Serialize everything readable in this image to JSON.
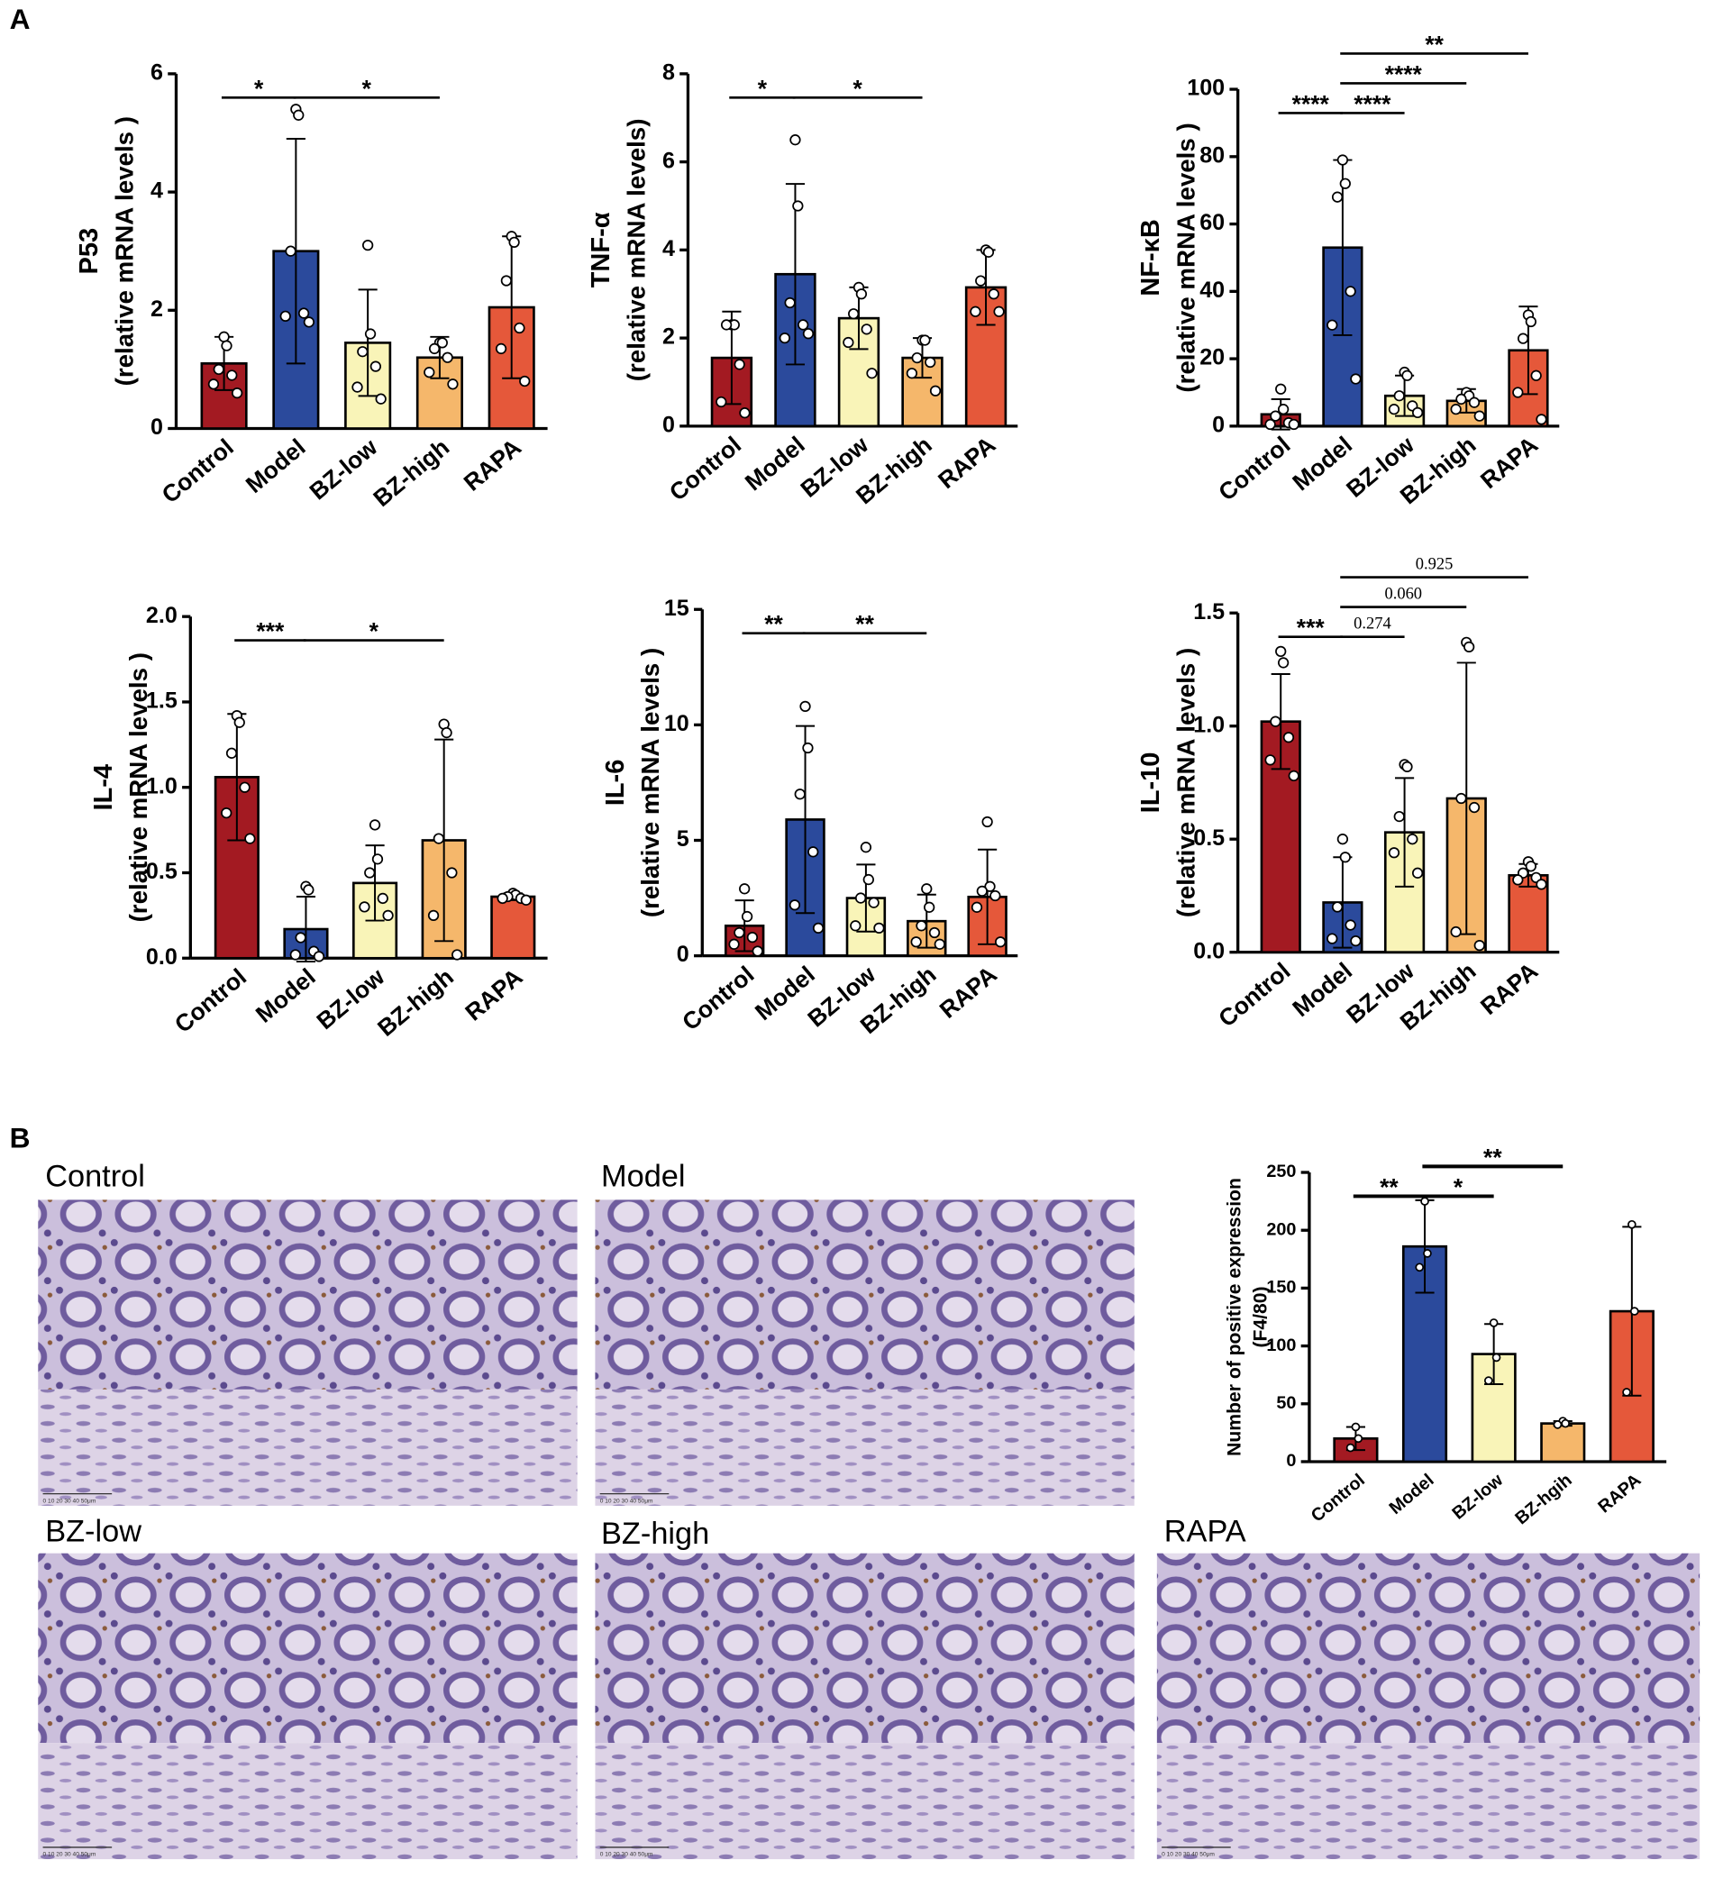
{
  "panel_a_label": "A",
  "panel_b_label": "B",
  "chart_data": [
    {
      "type": "bar",
      "ylabel": [
        "P53",
        "(relative mRNA levels )"
      ],
      "categories": [
        "Control",
        "Model",
        "BZ-low",
        "BZ-high",
        "RAPA"
      ],
      "colors": [
        "#a31a22",
        "#2b4a9c",
        "#f9f4b8",
        "#f5b76b",
        "#e5583a"
      ],
      "values": [
        1.1,
        3.0,
        1.45,
        1.2,
        2.05
      ],
      "errors": [
        0.45,
        1.9,
        0.9,
        0.35,
        1.2
      ],
      "points": [
        [
          1.55,
          1.4,
          1.0,
          0.9,
          0.75,
          0.6
        ],
        [
          5.4,
          5.3,
          3.0,
          1.95,
          1.9,
          1.8
        ],
        [
          3.1,
          1.6,
          1.3,
          1.05,
          0.7,
          0.5
        ],
        [
          1.45,
          1.45,
          1.35,
          1.2,
          0.95,
          0.75
        ],
        [
          3.25,
          3.15,
          2.5,
          1.7,
          1.35,
          0.8
        ]
      ],
      "ylim": [
        0,
        6
      ],
      "yticks": [
        0,
        2,
        4,
        6
      ],
      "brackets": [
        {
          "from": "Control",
          "to": "Model",
          "label": "*"
        },
        {
          "from": "Model",
          "to": "BZ-high",
          "label": "*"
        }
      ]
    },
    {
      "type": "bar",
      "ylabel": [
        "TNF-α",
        "(relative mRNA levels)"
      ],
      "categories": [
        "Control",
        "Model",
        "BZ-low",
        "BZ-high",
        "RAPA"
      ],
      "colors": [
        "#a31a22",
        "#2b4a9c",
        "#f9f4b8",
        "#f5b76b",
        "#e5583a"
      ],
      "values": [
        1.55,
        3.45,
        2.45,
        1.55,
        3.15
      ],
      "errors": [
        1.05,
        2.05,
        0.7,
        0.45,
        0.85
      ],
      "points": [
        [
          2.3,
          2.3,
          2.3,
          1.4,
          0.55,
          0.3
        ],
        [
          6.5,
          5.0,
          2.8,
          2.3,
          2.0,
          2.1
        ],
        [
          3.15,
          3.0,
          2.55,
          2.2,
          1.9,
          1.2
        ],
        [
          1.95,
          1.95,
          1.55,
          1.45,
          1.2,
          0.8
        ],
        [
          4.0,
          3.95,
          3.3,
          3.0,
          2.6,
          2.6
        ]
      ],
      "ylim": [
        0,
        8
      ],
      "yticks": [
        0,
        2,
        4,
        6,
        8
      ],
      "brackets": [
        {
          "from": "Control",
          "to": "Model",
          "label": "*"
        },
        {
          "from": "Model",
          "to": "BZ-high",
          "label": "*"
        }
      ]
    },
    {
      "type": "bar",
      "ylabel": [
        "NF-κB",
        "(relative mRNA levels )"
      ],
      "categories": [
        "Control",
        "Model",
        "BZ-low",
        "BZ-high",
        "RAPA"
      ],
      "colors": [
        "#a31a22",
        "#2b4a9c",
        "#f9f4b8",
        "#f5b76b",
        "#e5583a"
      ],
      "values": [
        3.5,
        53,
        9,
        7.5,
        22.5
      ],
      "errors": [
        4.5,
        26,
        6,
        3.5,
        13
      ],
      "points": [
        [
          11,
          5,
          3,
          1,
          0.5,
          0.5
        ],
        [
          79,
          72,
          68,
          40,
          30,
          14
        ],
        [
          16,
          15,
          9,
          6,
          5,
          4
        ],
        [
          10,
          9,
          8,
          7,
          5,
          3
        ],
        [
          33,
          31,
          26,
          15,
          10,
          2
        ]
      ],
      "ylim": [
        0,
        100
      ],
      "yticks": [
        0,
        20,
        40,
        60,
        80,
        100
      ],
      "brackets": [
        {
          "from": "Control",
          "to": "Model",
          "label": "****"
        },
        {
          "from": "Model",
          "to": "BZ-low",
          "label": "****"
        },
        {
          "from": "Model",
          "to": "BZ-high",
          "label": "****"
        },
        {
          "from": "Model",
          "to": "RAPA",
          "label": "**"
        }
      ]
    },
    {
      "type": "bar",
      "ylabel": [
        "IL-4",
        "(relative mRNA levels )"
      ],
      "categories": [
        "Control",
        "Model",
        "BZ-low",
        "BZ-high",
        "RAPA"
      ],
      "colors": [
        "#a31a22",
        "#2b4a9c",
        "#f9f4b8",
        "#f5b76b",
        "#e5583a"
      ],
      "values": [
        1.06,
        0.17,
        0.44,
        0.69,
        0.36
      ],
      "errors": [
        0.37,
        0.19,
        0.22,
        0.59,
        0.02
      ],
      "points": [
        [
          1.42,
          1.38,
          1.2,
          1.0,
          0.85,
          0.7
        ],
        [
          0.42,
          0.4,
          0.12,
          0.04,
          0.02,
          0.01
        ],
        [
          0.78,
          0.58,
          0.5,
          0.35,
          0.3,
          0.25
        ],
        [
          1.37,
          1.32,
          0.7,
          0.5,
          0.25,
          0.02
        ],
        [
          0.38,
          0.37,
          0.36,
          0.35,
          0.35,
          0.34
        ]
      ],
      "ylim": [
        0,
        2
      ],
      "yticks": [
        {
          "value": 0,
          "label": "0.0"
        },
        0.5,
        {
          "value": 1,
          "label": "1.0"
        },
        1.5,
        {
          "value": 2,
          "label": "2.0"
        }
      ],
      "brackets": [
        {
          "from": "Control",
          "to": "Model",
          "label": "***"
        },
        {
          "from": "Model",
          "to": "BZ-high",
          "label": "*"
        }
      ]
    },
    {
      "type": "bar",
      "ylabel": [
        "IL-6",
        "(relative mRNA levels )"
      ],
      "categories": [
        "Control",
        "Model",
        "BZ-low",
        "BZ-high",
        "RAPA"
      ],
      "colors": [
        "#a31a22",
        "#2b4a9c",
        "#f9f4b8",
        "#f5b76b",
        "#e5583a"
      ],
      "values": [
        1.3,
        5.9,
        2.5,
        1.5,
        2.55
      ],
      "errors": [
        1.1,
        4.05,
        1.45,
        1.15,
        2.05
      ],
      "points": [
        [
          2.9,
          1.7,
          1.0,
          0.8,
          0.5,
          0.2
        ],
        [
          10.8,
          9.0,
          7.0,
          4.5,
          2.2,
          1.2
        ],
        [
          4.7,
          3.3,
          2.5,
          2.3,
          1.3,
          1.2
        ],
        [
          2.9,
          2.1,
          1.3,
          1.0,
          0.6,
          0.5
        ],
        [
          5.8,
          3.0,
          2.8,
          2.6,
          2.1,
          0.6
        ]
      ],
      "ylim": [
        0,
        15
      ],
      "yticks": [
        0,
        5,
        10,
        15
      ],
      "brackets": [
        {
          "from": "Control",
          "to": "Model",
          "label": "**"
        },
        {
          "from": "Model",
          "to": "BZ-high",
          "label": "**"
        }
      ]
    },
    {
      "type": "bar",
      "ylabel": [
        "IL-10",
        "(relative mRNA levels )"
      ],
      "categories": [
        "Control",
        "Model",
        "BZ-low",
        "BZ-high",
        "RAPA"
      ],
      "colors": [
        "#a31a22",
        "#2b4a9c",
        "#f9f4b8",
        "#f5b76b",
        "#e5583a"
      ],
      "values": [
        1.02,
        0.22,
        0.53,
        0.68,
        0.34
      ],
      "errors": [
        0.21,
        0.2,
        0.24,
        0.6,
        0.05
      ],
      "points": [
        [
          1.33,
          1.28,
          1.02,
          0.95,
          0.85,
          0.78
        ],
        [
          0.5,
          0.42,
          0.2,
          0.12,
          0.06,
          0.05
        ],
        [
          0.83,
          0.82,
          0.6,
          0.5,
          0.44,
          0.35
        ],
        [
          1.37,
          1.35,
          0.68,
          0.64,
          0.09,
          0.03
        ],
        [
          0.4,
          0.38,
          0.35,
          0.33,
          0.32,
          0.3
        ]
      ],
      "ylim": [
        0,
        1.5
      ],
      "yticks": [
        {
          "value": 0,
          "label": "0.0"
        },
        0.5,
        {
          "value": 1,
          "label": "1.0"
        },
        1.5
      ],
      "brackets": [
        {
          "from": "Control",
          "to": "Model",
          "label": "***"
        },
        {
          "from": "Model",
          "to": "BZ-low",
          "label": "0.274"
        },
        {
          "from": "Model",
          "to": "BZ-high",
          "label": "0.060"
        },
        {
          "from": "Model",
          "to": "RAPA",
          "label": "0.925"
        }
      ]
    },
    {
      "type": "bar",
      "ylabel": [
        "Number of positive expression",
        "(F4/80)"
      ],
      "categories": [
        "Control",
        "Model",
        "BZ-low",
        "BZ-hgih",
        "RAPA"
      ],
      "colors": [
        "#a31a22",
        "#2b4a9c",
        "#f9f4b8",
        "#f5b76b",
        "#e5583a"
      ],
      "values": [
        20,
        186,
        93,
        33,
        130
      ],
      "errors": [
        10,
        40,
        26,
        2,
        73
      ],
      "points": [
        [
          30,
          20,
          12
        ],
        [
          225,
          180,
          168
        ],
        [
          120,
          90,
          70
        ],
        [
          35,
          33,
          32
        ],
        [
          205,
          130,
          60
        ]
      ],
      "ylim": [
        0,
        250
      ],
      "yticks": [
        0,
        50,
        100,
        150,
        200,
        250
      ],
      "brackets": [
        {
          "from": "Control",
          "to": "Model",
          "label": "**"
        },
        {
          "from": "Model",
          "to": "BZ-low",
          "label": "*"
        },
        {
          "from": "Model",
          "to": "BZ-hgih",
          "label": "**"
        }
      ]
    }
  ],
  "images": [
    {
      "caption": "Control",
      "scale_bar": "0 10 20 30 40 50μm"
    },
    {
      "caption": "Model",
      "scale_bar": "0 10 20 30 40 50μm"
    },
    {
      "caption": "BZ-low",
      "scale_bar": "0 10 20 30 40 50μm"
    },
    {
      "caption": "BZ-high",
      "scale_bar": "0 10 20 30 40 50μm"
    },
    {
      "caption": "RAPA",
      "scale_bar": "0 10 20 30 40 50μm"
    }
  ]
}
